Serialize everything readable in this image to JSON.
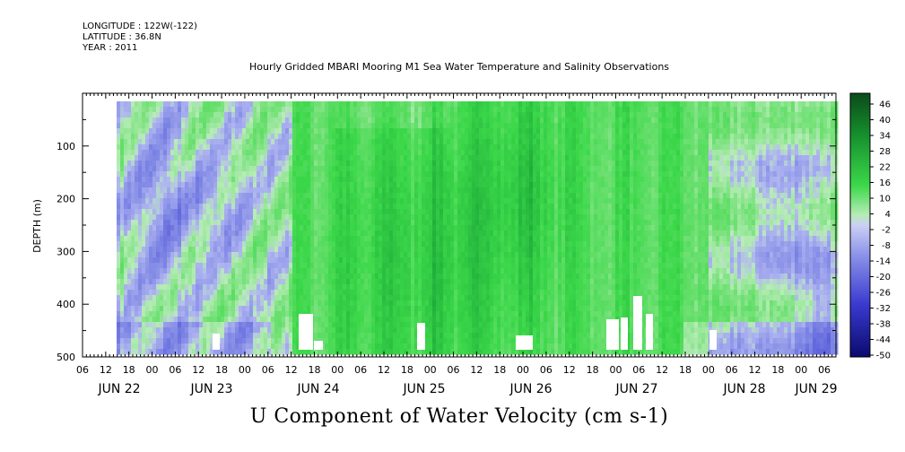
{
  "header": {
    "longitude": "LONGITUDE : 122W(-122)",
    "latitude": "LATITUDE : 36.8N",
    "year": "YEAR : 2011"
  },
  "chart_data": {
    "type": "heatmap",
    "title": "Hourly Gridded MBARI Mooring M1 Sea Water Temperature and Salinity Observations",
    "xlabel": "U Component of Water Velocity (cm s-1)",
    "ylabel": "DEPTH (m)",
    "x_hour_ticks": [
      "06",
      "12",
      "18",
      "00",
      "06",
      "12",
      "18",
      "00",
      "06",
      "12",
      "18",
      "00",
      "06",
      "12",
      "18",
      "00",
      "06",
      "12",
      "18",
      "00",
      "06",
      "12",
      "18",
      "00",
      "06",
      "12",
      "18",
      "00",
      "06",
      "12",
      "18",
      "00",
      "06"
    ],
    "x_day_labels": [
      "JUN 22",
      "JUN 23",
      "JUN 24",
      "JUN 25",
      "JUN 26",
      "JUN 27",
      "JUN 28",
      "JUN 29"
    ],
    "y_ticks": [
      100,
      200,
      300,
      400,
      500
    ],
    "ylim": [
      500,
      0
    ],
    "colorbar": {
      "labels": [
        "46",
        "40",
        "34",
        "28",
        "22",
        "16",
        "10",
        "4",
        "-2",
        "-8",
        "-14",
        "-20",
        "-26",
        "-32",
        "-38",
        "-44",
        "-50"
      ],
      "range": [
        -50,
        50
      ],
      "colors": {
        "strong_negative": "#0a0a6e",
        "negative": "#5a5ad8",
        "weak_negative": "#aeb4f0",
        "weak_positive": "#b4ecb4",
        "positive": "#3cd84a",
        "strong_positive": "#0c5a22"
      }
    }
  }
}
